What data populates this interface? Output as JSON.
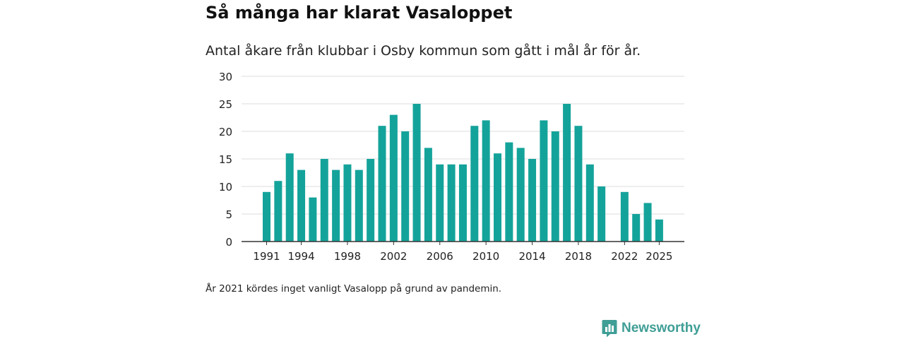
{
  "title": "Så många har klarat Vasaloppet",
  "subtitle": "Antal åkare från klubbar i Osby kommun som gått i mål år för år.",
  "note": "År 2021 kördes inget vanligt Vasalopp på grund av pandemin.",
  "brand": {
    "name": "Newsworthy",
    "icon": "newsworthy-logo-icon",
    "color": "#3f9e96"
  },
  "colors": {
    "bar": "#14a39a",
    "grid": "#dddddd",
    "axis": "#333333"
  },
  "chart_data": {
    "type": "bar",
    "title": "Så många har klarat Vasaloppet",
    "xlabel": "",
    "ylabel": "",
    "ylim": [
      0,
      30
    ],
    "yticks": [
      0,
      5,
      10,
      15,
      20,
      25,
      30
    ],
    "xticks": [
      1991,
      1994,
      1998,
      2002,
      2006,
      2010,
      2014,
      2018,
      2022,
      2025
    ],
    "grid": true,
    "categories": [
      1991,
      1992,
      1993,
      1994,
      1995,
      1996,
      1997,
      1998,
      1999,
      2000,
      2001,
      2002,
      2003,
      2004,
      2005,
      2006,
      2007,
      2008,
      2009,
      2010,
      2011,
      2012,
      2013,
      2014,
      2015,
      2016,
      2017,
      2018,
      2019,
      2020,
      2021,
      2022,
      2023,
      2024,
      2025
    ],
    "values": [
      9,
      11,
      16,
      13,
      8,
      15,
      13,
      14,
      13,
      15,
      21,
      23,
      20,
      25,
      17,
      14,
      14,
      14,
      21,
      22,
      16,
      18,
      17,
      15,
      22,
      20,
      25,
      21,
      14,
      10,
      null,
      9,
      5,
      7,
      4
    ]
  }
}
